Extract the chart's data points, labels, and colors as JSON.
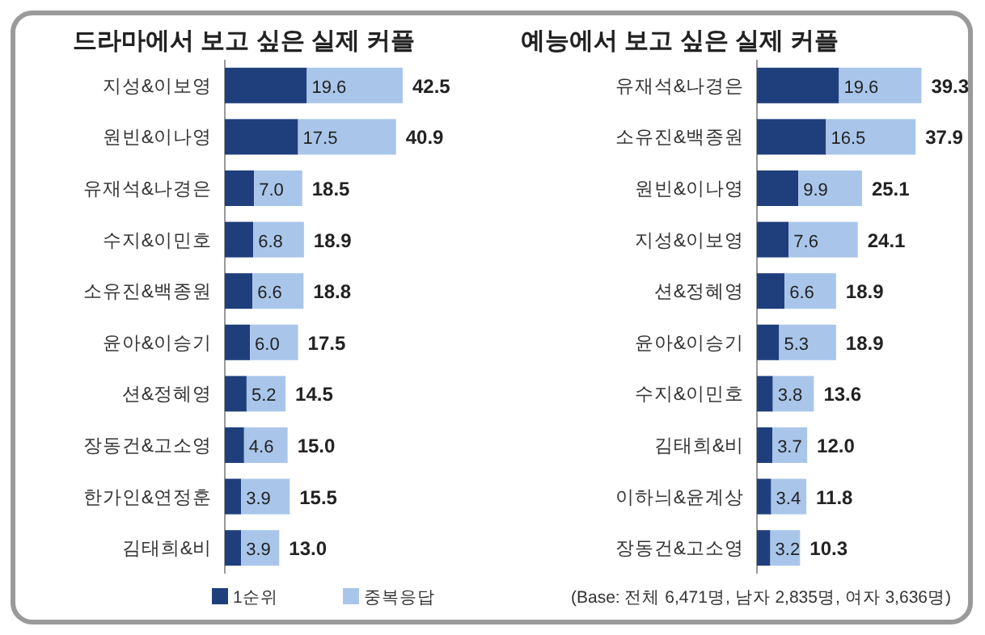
{
  "chart_data": [
    {
      "type": "bar",
      "orientation": "horizontal",
      "stacked": true,
      "title": "드라마에서 보고 싶은 실제 커플",
      "categories": [
        "지성&이보영",
        "원빈&이나영",
        "유재석&나경은",
        "수지&이민호",
        "소유진&백종원",
        "윤아&이승기",
        "션&정혜영",
        "장동건&고소영",
        "한가인&연정훈",
        "김태희&비"
      ],
      "series": [
        {
          "name": "1순위",
          "color": "#1f3f7c",
          "values": [
            19.6,
            17.5,
            7.0,
            6.8,
            6.6,
            6.0,
            5.2,
            4.6,
            3.9,
            3.9
          ],
          "value_labels": [
            "19.6",
            "17.5",
            "7.0",
            "6.8",
            "6.6",
            "6.0",
            "5.2",
            "4.6",
            "3.9",
            "3.9"
          ]
        },
        {
          "name": "중복응답",
          "color": "#a9c6ea",
          "values": [
            22.9,
            23.4,
            11.5,
            12.1,
            12.2,
            11.5,
            9.3,
            10.4,
            11.6,
            9.1
          ]
        }
      ],
      "totals": [
        "42.5",
        "40.9",
        "18.5",
        "18.9",
        "18.8",
        "17.5",
        "14.5",
        "15.0",
        "15.5",
        "13.0"
      ],
      "legend": "bottom"
    },
    {
      "type": "bar",
      "orientation": "horizontal",
      "stacked": true,
      "title": "예능에서 보고 싶은 실제 커플",
      "categories": [
        "유재석&나경은",
        "소유진&백종원",
        "원빈&이나영",
        "지성&이보영",
        "션&정혜영",
        "윤아&이승기",
        "수지&이민호",
        "김태희&비",
        "이하늬&윤계상",
        "장동건&고소영"
      ],
      "series": [
        {
          "color": "#1f3f7c",
          "values": [
            19.6,
            16.5,
            9.9,
            7.6,
            6.6,
            5.3,
            3.8,
            3.7,
            3.4,
            3.2
          ],
          "value_labels": [
            "19.6",
            "16.5",
            "9.9",
            "7.6",
            "6.6",
            "5.3",
            "3.8",
            "3.7",
            "3.4",
            "3.2"
          ]
        },
        {
          "color": "#a9c6ea",
          "values": [
            19.7,
            21.4,
            15.2,
            16.5,
            12.3,
            13.6,
            9.8,
            8.3,
            8.4,
            7.1
          ]
        }
      ],
      "totals": [
        "39.3",
        "37.9",
        "25.1",
        "24.1",
        "18.9",
        "18.9",
        "13.6",
        "12.0",
        "11.8",
        "10.3"
      ],
      "annotations": [
        "(Base: 전체 6,471명, 남자 2,835명, 여자 3,636명)"
      ]
    }
  ]
}
